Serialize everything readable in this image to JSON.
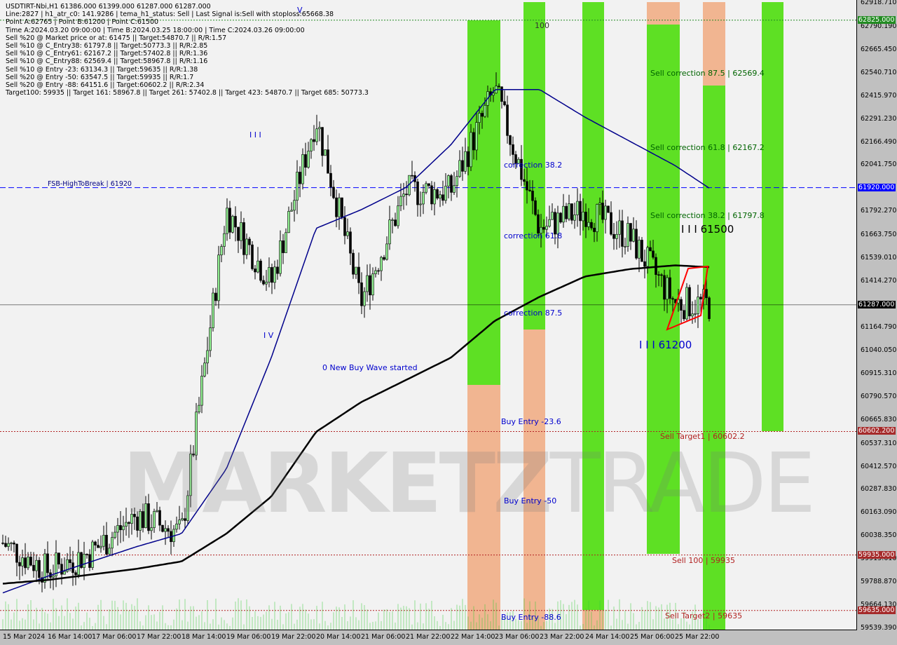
{
  "header": {
    "symbol_line": "USDTIRT-Nbi,H1  61386.000 61399.000 61287.000 61287.000",
    "lines": [
      "Line:2827 | h1_atr_c0: 141.9286 | tema_h1_status: Sell | Last Signal is:Sell with stoploss:65668.38",
      "Point A:62765 | Point B:61200 | Point C:61500",
      "Time A:2024.03.20 09:00:00 | Time B:2024.03.25 18:00:00 | Time C:2024.03.26 09:00:00",
      "Sell %20 @ Market price or at: 61475 || Target:54870.7 || R/R:1.57",
      "Sell %10 @ C_Entry38: 61797.8 || Target:50773.3 || R/R:2.85",
      "Sell %10 @ C_Entry61: 62167.2 || Target:57402.8 || R/R:1.36",
      "Sell %10 @ C_Entry88: 62569.4 || Target:58967.8 || R/R:1.16",
      "Sell %10 @ Entry -23: 63134.3 || Target:59635 || R/R:1.38",
      "Sell %20 @ Entry -50: 63547.5 || Target:59935 || R/R:1.7",
      "Sell %20 @ Entry -88: 64151.6 || Target:60602.2 || R/R:2.34",
      "Target100: 59935 || Target 161: 58967.8 || Target 261: 57402.8 || Target 423: 54870.7 || Target 685: 50773.3"
    ]
  },
  "watermark": {
    "bold": "MARKETZ",
    "light": "TRADE"
  },
  "colors": {
    "bull": "#000000",
    "bear": "#000000",
    "blue_ma": "#00008b",
    "black_ma": "#000000",
    "green_band": "#44dd00",
    "orange_band": "#f0a070",
    "fsb": "#0000ff",
    "target": "#b22222"
  },
  "annotations": {
    "fsb": "FSB-HighToBreak | 61920",
    "sc875": "Sell correction 87.5 | 62569.4",
    "sc618": "Sell correction 61.8 | 62167.2",
    "sc382": "Sell correction 38.2 | 61797.8",
    "p61500": "I I I 61500",
    "p61200": "I I I 61200",
    "c382": "correction 38.2",
    "c618": "correction 61.8",
    "c875": "correction 87.5",
    "newbuy": "0 New Buy Wave started",
    "be236": "Buy Entry -23.6",
    "be50": "Buy Entry -50",
    "be886": "Buy Entry -88.6",
    "st1": "Sell Target1 | 60602.2",
    "s100": "Sell 100 | 59935",
    "st2": "Sell Target2 | 59635",
    "n100": "100",
    "iii": "I I I",
    "iv": "I V",
    "v": "V"
  },
  "chart_data": {
    "type": "candlestick",
    "title": "USDTIRT-Nbi,H1",
    "ylim": [
      59539.39,
      62918.71
    ],
    "y_ticks": [
      "62918.710",
      "62790.190",
      "62665.450",
      "62540.710",
      "62415.970",
      "62291.230",
      "62166.490",
      "62041.750",
      "61792.270",
      "61663.750",
      "61539.010",
      "61414.270",
      "61164.790",
      "61040.050",
      "60915.310",
      "60790.570",
      "60665.830",
      "60537.310",
      "60412.570",
      "60287.830",
      "60163.090",
      "60038.350",
      "59913.610",
      "59788.870",
      "59664.130",
      "59539.390"
    ],
    "x_ticks": [
      "15 Mar 2024",
      "16 Mar 14:00",
      "17 Mar 06:00",
      "17 Mar 22:00",
      "18 Mar 14:00",
      "19 Mar 06:00",
      "19 Mar 22:00",
      "20 Mar 14:00",
      "21 Mar 06:00",
      "21 Mar 22:00",
      "22 Mar 14:00",
      "23 Mar 06:00",
      "23 Mar 22:00",
      "24 Mar 14:00",
      "25 Mar 06:00",
      "25 Mar 22:00"
    ],
    "close_samples": [
      60000,
      59850,
      59950,
      60150,
      60050,
      61800,
      61400,
      62300,
      61300,
      61900,
      61900,
      62450,
      61700,
      61800,
      61650,
      61300,
      61287
    ],
    "blue_ma_samples": [
      59730,
      59820,
      59900,
      59980,
      60050,
      60400,
      61000,
      61700,
      61800,
      61920,
      62150,
      62450,
      62450,
      62300,
      62170,
      62040,
      61910
    ],
    "black_ma_samples": [
      59780,
      59800,
      59830,
      59860,
      59900,
      60050,
      60250,
      60600,
      60760,
      60880,
      61000,
      61200,
      61330,
      61440,
      61480,
      61500,
      61490
    ],
    "levels": [
      {
        "price": 62825.0,
        "label": "62825.000",
        "color": "#228b22"
      },
      {
        "price": 61920.0,
        "label": "61920.000",
        "color": "#0000ff"
      },
      {
        "price": 61287.0,
        "label": "61287.000",
        "color": "#000000"
      },
      {
        "price": 60602.2,
        "label": "60602.200",
        "color": "#b22222"
      },
      {
        "price": 59935.0,
        "label": "59935.000",
        "color": "#b22222"
      },
      {
        "price": 59635.0,
        "label": "59635.000",
        "color": "#b22222"
      }
    ]
  }
}
